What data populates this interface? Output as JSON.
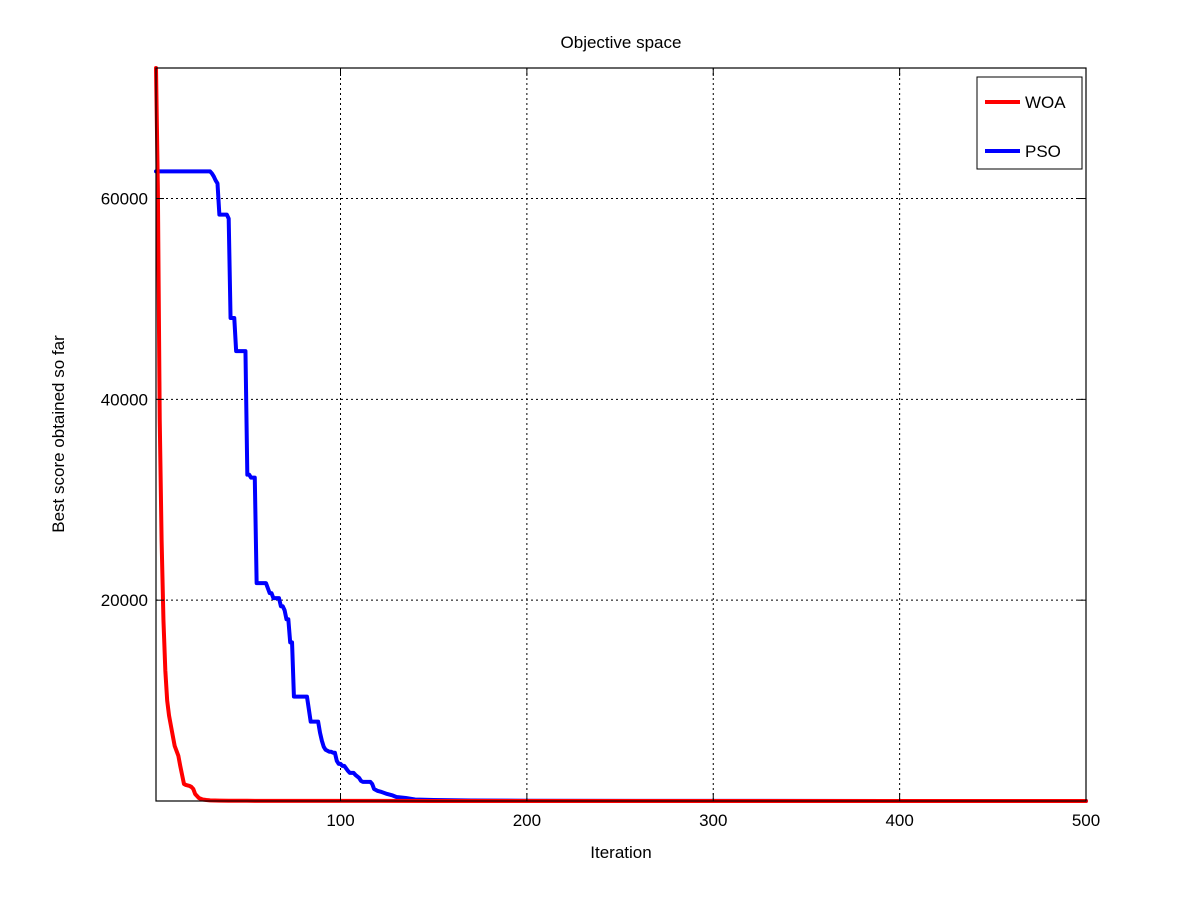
{
  "chart_data": {
    "type": "line",
    "title": "Objective space",
    "xlabel": "Iteration",
    "ylabel": "Best score obtained so far",
    "xlim": [
      1,
      500
    ],
    "ylim": [
      0,
      73000
    ],
    "xticks": [
      100,
      200,
      300,
      400,
      500
    ],
    "xtick_labels": [
      "100",
      "200",
      "300",
      "400",
      "500"
    ],
    "yticks": [
      20000,
      40000,
      60000
    ],
    "ytick_labels": [
      "20000",
      "40000",
      "60000"
    ],
    "grid": true,
    "legend_position": "top-right",
    "series": [
      {
        "name": "WOA",
        "color": "#ff0000",
        "x": [
          1,
          2,
          3,
          4,
          5,
          6,
          7,
          8,
          9,
          10,
          11,
          12,
          13,
          14,
          15,
          16,
          17,
          18,
          19,
          20,
          21,
          22,
          24,
          26,
          28,
          30,
          35,
          40,
          50,
          60,
          80,
          100,
          150,
          200,
          300,
          400,
          500
        ],
        "y": [
          73000,
          61000,
          38000,
          26000,
          18000,
          13000,
          10000,
          8500,
          7500,
          6500,
          5500,
          5000,
          4500,
          3500,
          2600,
          1700,
          1600,
          1550,
          1500,
          1400,
          1200,
          700,
          300,
          150,
          100,
          60,
          40,
          30,
          20,
          15,
          10,
          8,
          5,
          3,
          2,
          1,
          1
        ]
      },
      {
        "name": "PSO",
        "color": "#0000ff",
        "x": [
          1,
          30,
          31,
          32,
          33,
          34,
          35,
          36,
          37,
          38,
          39,
          40,
          41,
          42,
          43,
          44,
          45,
          46,
          47,
          48,
          49,
          50,
          51,
          52,
          53,
          54,
          55,
          56,
          57,
          58,
          60,
          62,
          63,
          64,
          65,
          66,
          67,
          68,
          69,
          70,
          71,
          72,
          73,
          74,
          75,
          76,
          77,
          78,
          80,
          81,
          82,
          84,
          85,
          86,
          87,
          88,
          89,
          90,
          91,
          92,
          93,
          94,
          95,
          96,
          97,
          98,
          99,
          100,
          101,
          102,
          104,
          105,
          106,
          107,
          108,
          110,
          111,
          112,
          113,
          114,
          116,
          117,
          118,
          119,
          120,
          122,
          125,
          128,
          130,
          135,
          140,
          150,
          170,
          200,
          300,
          400,
          500
        ],
        "y": [
          62700,
          62700,
          62500,
          62200,
          61800,
          61500,
          58400,
          58400,
          58400,
          58400,
          58400,
          58000,
          48100,
          48100,
          48100,
          44800,
          44800,
          44800,
          44800,
          44800,
          44800,
          32500,
          32500,
          32200,
          32200,
          32200,
          21700,
          21700,
          21700,
          21700,
          21700,
          20700,
          20700,
          20200,
          20200,
          20200,
          20200,
          19400,
          19400,
          19000,
          18100,
          18100,
          15800,
          15800,
          10400,
          10400,
          10400,
          10400,
          10400,
          10400,
          10400,
          7900,
          7900,
          7900,
          7900,
          7900,
          6800,
          6000,
          5400,
          5100,
          5000,
          4900,
          4900,
          4800,
          4800,
          4000,
          3700,
          3700,
          3500,
          3500,
          3000,
          2800,
          2800,
          2800,
          2600,
          2300,
          2000,
          1900,
          1900,
          1900,
          1900,
          1700,
          1200,
          1100,
          1000,
          900,
          700,
          550,
          400,
          300,
          150,
          100,
          50,
          30,
          10,
          5,
          2
        ]
      }
    ]
  }
}
